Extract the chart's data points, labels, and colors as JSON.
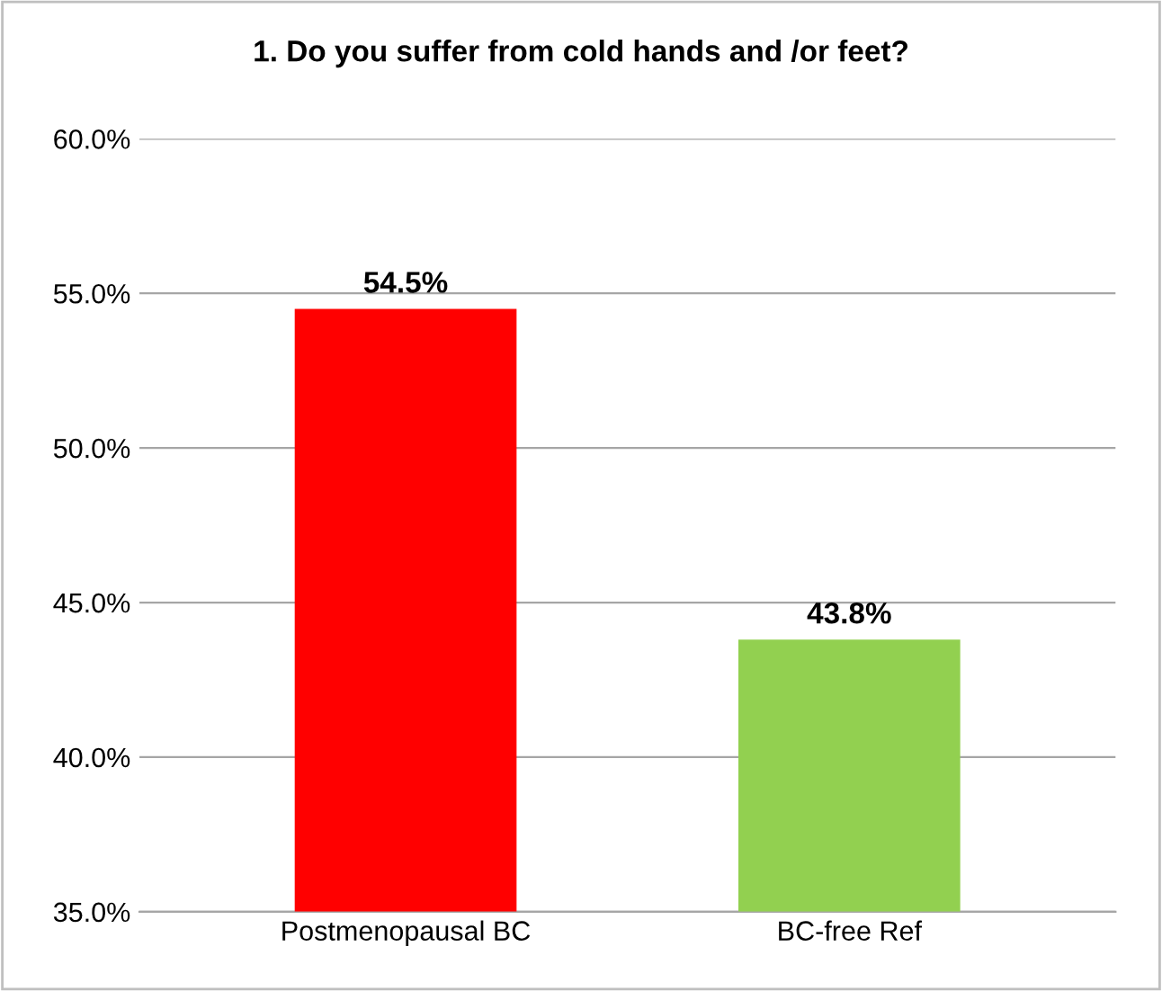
{
  "chart_data": {
    "type": "bar",
    "title": "1. Do you suffer from cold hands and /or feet?",
    "categories": [
      "Postmenopausal BC",
      "BC-free Ref"
    ],
    "values": [
      54.5,
      43.8
    ],
    "colors": [
      "#ff0000",
      "#92d050"
    ],
    "value_labels": [
      "54.5%",
      "43.8%"
    ],
    "ylim": [
      35,
      60
    ],
    "yticks": [
      {
        "value": 35,
        "label": "35.0%"
      },
      {
        "value": 40,
        "label": "40.0%"
      },
      {
        "value": 45,
        "label": "45.0%"
      },
      {
        "value": 50,
        "label": "50.0%"
      },
      {
        "value": 55,
        "label": "55.0%"
      },
      {
        "value": 60,
        "label": "60.0%"
      }
    ],
    "grid": "y"
  }
}
